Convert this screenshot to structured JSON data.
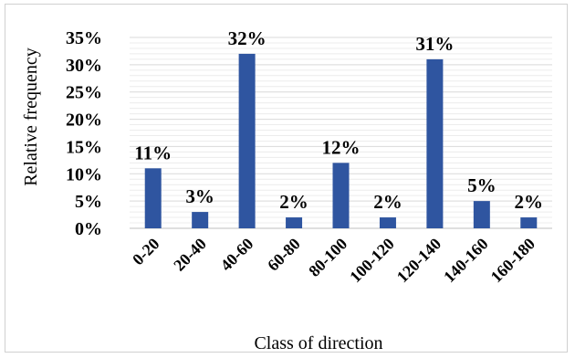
{
  "chart_data": {
    "type": "bar",
    "categories": [
      "0-20",
      "20-40",
      "40-60",
      "60-80",
      "80-100",
      "100-120",
      "120-140",
      "140-160",
      "160-180"
    ],
    "values": [
      11,
      3,
      32,
      2,
      12,
      2,
      31,
      5,
      2
    ],
    "data_labels": [
      "11%",
      "3%",
      "32%",
      "2%",
      "12%",
      "2%",
      "31%",
      "5%",
      "2%"
    ],
    "y_ticks": [
      "0%",
      "5%",
      "10%",
      "15%",
      "20%",
      "25%",
      "30%",
      "35%"
    ],
    "xlabel": "Class of direction",
    "ylabel": "Relative frequency",
    "ylim": [
      0,
      35
    ],
    "grid": true,
    "bar_color": "#2f55a0"
  }
}
